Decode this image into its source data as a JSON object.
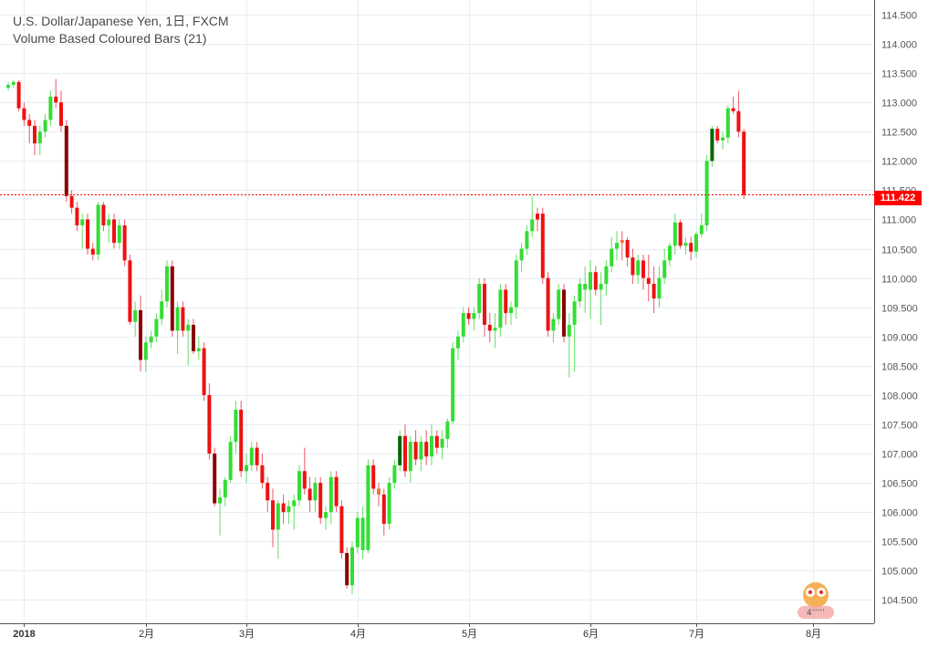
{
  "legend": {
    "symbol": "U.S. Dollar/Japanese Yen, 1日, FXCM",
    "indicator": "Volume Based Coloured Bars (21)"
  },
  "last_price": {
    "label": "111.422",
    "value": 111.422,
    "color": "#ff0000"
  },
  "watermark": {
    "icon": "owl-logo-icon",
    "text": "4ʼʼʼʼʼ"
  },
  "colors": {
    "up": "#33dd33",
    "up_high_volume": "#006600",
    "down": "#ee1111",
    "down_high_volume": "#8b0000",
    "neutral": "#ee7733",
    "wick_up": "#66dd66",
    "wick_down": "#ee5566",
    "grid": "#e6eef4",
    "axis": "#555555"
  },
  "chart_data": {
    "type": "candlestick",
    "title": "U.S. Dollar/Japanese Yen, 1日, FXCM",
    "ylim": [
      104.1,
      114.75
    ],
    "y_ticks": [
      "104.500",
      "105.000",
      "105.500",
      "106.000",
      "106.500",
      "107.000",
      "107.500",
      "108.000",
      "108.500",
      "109.000",
      "109.500",
      "110.000",
      "110.500",
      "111.000",
      "111.500",
      "112.000",
      "112.500",
      "113.000",
      "113.500",
      "114.000",
      "114.500"
    ],
    "x_ticks": [
      {
        "index": 3,
        "label": "2018",
        "bold": true
      },
      {
        "index": 26,
        "label": "2月"
      },
      {
        "index": 45,
        "label": "3月"
      },
      {
        "index": 66,
        "label": "4月"
      },
      {
        "index": 87,
        "label": "5月"
      },
      {
        "index": 110,
        "label": "6月"
      },
      {
        "index": 130,
        "label": "7月"
      },
      {
        "index": 152,
        "label": "8月"
      }
    ],
    "grid": true,
    "candles": [
      [
        113.25,
        113.35,
        113.2,
        113.3,
        "up"
      ],
      [
        113.3,
        113.38,
        113.25,
        113.35,
        "up"
      ],
      [
        113.35,
        113.38,
        112.85,
        112.9,
        "down"
      ],
      [
        112.9,
        113.0,
        112.6,
        112.7,
        "down"
      ],
      [
        112.7,
        112.8,
        112.3,
        112.6,
        "down"
      ],
      [
        112.6,
        112.7,
        112.1,
        112.3,
        "down"
      ],
      [
        112.3,
        112.6,
        112.1,
        112.5,
        "up"
      ],
      [
        112.5,
        112.8,
        112.4,
        112.7,
        "up"
      ],
      [
        112.7,
        113.2,
        112.6,
        113.1,
        "up"
      ],
      [
        113.1,
        113.4,
        112.9,
        113.0,
        "down"
      ],
      [
        113.0,
        113.2,
        112.5,
        112.6,
        "down"
      ],
      [
        112.6,
        112.7,
        111.3,
        111.4,
        "down_high"
      ],
      [
        111.4,
        111.5,
        111.1,
        111.2,
        "down"
      ],
      [
        111.2,
        111.3,
        110.8,
        110.9,
        "down"
      ],
      [
        110.9,
        111.1,
        110.5,
        111.0,
        "up"
      ],
      [
        111.0,
        111.1,
        110.4,
        110.5,
        "down"
      ],
      [
        110.5,
        110.6,
        110.3,
        110.4,
        "down"
      ],
      [
        110.4,
        111.3,
        110.3,
        111.25,
        "up"
      ],
      [
        111.25,
        111.3,
        110.8,
        110.9,
        "down"
      ],
      [
        110.9,
        111.1,
        110.6,
        111.0,
        "up"
      ],
      [
        111.0,
        111.1,
        110.5,
        110.6,
        "down"
      ],
      [
        110.6,
        111.0,
        110.5,
        110.9,
        "up"
      ],
      [
        110.9,
        111.0,
        110.2,
        110.3,
        "down"
      ],
      [
        110.3,
        110.4,
        109.2,
        109.25,
        "down"
      ],
      [
        109.25,
        109.6,
        109.0,
        109.45,
        "up"
      ],
      [
        109.45,
        109.7,
        108.4,
        108.6,
        "down_high"
      ],
      [
        108.6,
        109.0,
        108.4,
        108.9,
        "up"
      ],
      [
        108.9,
        109.1,
        108.8,
        109.0,
        "up"
      ],
      [
        109.0,
        109.4,
        108.9,
        109.3,
        "up"
      ],
      [
        109.3,
        109.8,
        109.2,
        109.6,
        "up"
      ],
      [
        109.6,
        110.3,
        109.5,
        110.2,
        "up"
      ],
      [
        110.2,
        110.3,
        109.0,
        109.1,
        "down_high"
      ],
      [
        109.1,
        109.6,
        108.7,
        109.5,
        "up"
      ],
      [
        109.5,
        109.6,
        109.0,
        109.1,
        "down"
      ],
      [
        109.1,
        109.3,
        108.5,
        109.2,
        "up"
      ],
      [
        109.2,
        109.3,
        108.7,
        108.75,
        "down_high"
      ],
      [
        108.75,
        109.0,
        108.6,
        108.8,
        "up"
      ],
      [
        108.8,
        108.9,
        107.9,
        108.0,
        "down"
      ],
      [
        108.0,
        108.2,
        106.9,
        107.0,
        "down"
      ],
      [
        107.0,
        107.1,
        106.1,
        106.15,
        "down_high"
      ],
      [
        106.15,
        106.4,
        105.6,
        106.25,
        "up"
      ],
      [
        106.25,
        106.6,
        106.1,
        106.55,
        "up"
      ],
      [
        106.55,
        107.3,
        106.5,
        107.2,
        "up"
      ],
      [
        107.2,
        107.9,
        107.0,
        107.75,
        "up"
      ],
      [
        107.75,
        107.9,
        106.6,
        106.7,
        "down"
      ],
      [
        106.7,
        107.0,
        106.5,
        106.8,
        "up"
      ],
      [
        106.8,
        107.2,
        106.7,
        107.1,
        "up"
      ],
      [
        107.1,
        107.2,
        106.7,
        106.8,
        "down"
      ],
      [
        106.8,
        107.0,
        106.4,
        106.5,
        "down"
      ],
      [
        106.5,
        106.6,
        106.0,
        106.2,
        "down"
      ],
      [
        106.2,
        106.4,
        105.4,
        105.7,
        "down"
      ],
      [
        105.7,
        106.2,
        105.2,
        106.15,
        "up"
      ],
      [
        106.15,
        106.3,
        105.8,
        106.0,
        "down"
      ],
      [
        106.0,
        106.2,
        105.8,
        106.1,
        "up"
      ],
      [
        106.1,
        106.3,
        105.7,
        106.2,
        "up"
      ],
      [
        106.2,
        106.8,
        106.1,
        106.7,
        "up"
      ],
      [
        106.7,
        107.1,
        106.3,
        106.4,
        "down"
      ],
      [
        106.4,
        106.6,
        106.0,
        106.2,
        "down"
      ],
      [
        106.2,
        106.6,
        106.0,
        106.5,
        "up"
      ],
      [
        106.5,
        106.6,
        105.8,
        105.9,
        "down"
      ],
      [
        105.9,
        106.1,
        105.7,
        106.0,
        "up"
      ],
      [
        106.0,
        106.7,
        105.8,
        106.6,
        "up"
      ],
      [
        106.6,
        106.7,
        106.0,
        106.1,
        "down"
      ],
      [
        106.1,
        106.2,
        105.2,
        105.3,
        "down"
      ],
      [
        105.3,
        105.4,
        104.7,
        104.75,
        "down_high"
      ],
      [
        104.75,
        105.5,
        104.6,
        105.4,
        "up"
      ],
      [
        105.4,
        106.0,
        105.3,
        105.9,
        "up"
      ],
      [
        105.9,
        106.1,
        105.2,
        105.35,
        "up"
      ],
      [
        105.35,
        106.9,
        105.3,
        106.8,
        "up"
      ],
      [
        106.8,
        106.9,
        106.3,
        106.4,
        "down"
      ],
      [
        106.4,
        106.5,
        106.1,
        106.3,
        "neutral"
      ],
      [
        106.3,
        106.4,
        105.6,
        105.8,
        "down"
      ],
      [
        105.8,
        106.6,
        105.7,
        106.5,
        "up"
      ],
      [
        106.5,
        106.9,
        106.4,
        106.8,
        "up"
      ],
      [
        106.8,
        107.4,
        106.7,
        107.3,
        "up_high"
      ],
      [
        107.3,
        107.5,
        106.6,
        106.7,
        "down"
      ],
      [
        106.7,
        107.3,
        106.5,
        107.2,
        "up"
      ],
      [
        107.2,
        107.4,
        106.8,
        106.9,
        "down"
      ],
      [
        106.9,
        107.3,
        106.7,
        107.2,
        "up"
      ],
      [
        107.2,
        107.4,
        106.8,
        106.95,
        "down"
      ],
      [
        106.95,
        107.5,
        106.8,
        107.3,
        "up"
      ],
      [
        107.3,
        107.4,
        107.0,
        107.1,
        "down"
      ],
      [
        107.1,
        107.4,
        106.9,
        107.25,
        "up"
      ],
      [
        107.25,
        107.6,
        107.1,
        107.55,
        "up"
      ],
      [
        107.55,
        108.9,
        107.5,
        108.8,
        "up"
      ],
      [
        108.8,
        109.1,
        108.6,
        109.0,
        "up"
      ],
      [
        109.0,
        109.5,
        108.9,
        109.4,
        "up"
      ],
      [
        109.4,
        109.5,
        109.2,
        109.3,
        "down"
      ],
      [
        109.3,
        109.5,
        109.1,
        109.4,
        "up"
      ],
      [
        109.4,
        110.0,
        109.3,
        109.9,
        "up"
      ],
      [
        109.9,
        110.0,
        109.0,
        109.2,
        "down"
      ],
      [
        109.2,
        109.4,
        108.9,
        109.1,
        "down"
      ],
      [
        109.1,
        109.4,
        108.8,
        109.15,
        "up"
      ],
      [
        109.15,
        109.9,
        109.0,
        109.8,
        "up"
      ],
      [
        109.8,
        109.9,
        109.2,
        109.4,
        "down"
      ],
      [
        109.4,
        109.6,
        109.2,
        109.5,
        "up"
      ],
      [
        109.5,
        110.4,
        109.3,
        110.3,
        "up"
      ],
      [
        110.3,
        110.6,
        110.1,
        110.5,
        "up"
      ],
      [
        110.5,
        110.9,
        110.4,
        110.8,
        "up"
      ],
      [
        110.8,
        111.4,
        110.7,
        111.0,
        "up"
      ],
      [
        111.0,
        111.2,
        110.8,
        111.1,
        "down"
      ],
      [
        111.1,
        111.2,
        109.9,
        110.0,
        "down"
      ],
      [
        110.0,
        110.1,
        109.0,
        109.1,
        "down"
      ],
      [
        109.1,
        109.4,
        108.9,
        109.3,
        "up"
      ],
      [
        109.3,
        109.9,
        109.2,
        109.8,
        "up"
      ],
      [
        109.8,
        109.9,
        108.9,
        109.0,
        "down_high"
      ],
      [
        109.0,
        109.4,
        108.3,
        109.2,
        "up"
      ],
      [
        109.2,
        109.7,
        108.4,
        109.6,
        "up"
      ],
      [
        109.6,
        110.0,
        109.5,
        109.9,
        "up"
      ],
      [
        109.9,
        110.2,
        109.4,
        109.8,
        "up"
      ],
      [
        109.8,
        110.3,
        109.3,
        110.1,
        "up"
      ],
      [
        110.1,
        110.2,
        109.7,
        109.8,
        "down"
      ],
      [
        109.8,
        110.1,
        109.2,
        109.9,
        "up"
      ],
      [
        109.9,
        110.3,
        109.7,
        110.2,
        "up"
      ],
      [
        110.2,
        110.7,
        110.1,
        110.5,
        "up"
      ],
      [
        110.5,
        110.8,
        110.3,
        110.6,
        "up"
      ],
      [
        110.6,
        110.8,
        110.3,
        110.65,
        "neutral"
      ],
      [
        110.65,
        110.7,
        110.2,
        110.35,
        "down"
      ],
      [
        110.35,
        110.5,
        109.9,
        110.05,
        "down"
      ],
      [
        110.05,
        110.4,
        109.9,
        110.3,
        "up"
      ],
      [
        110.3,
        110.4,
        109.8,
        110.0,
        "down"
      ],
      [
        110.0,
        110.4,
        109.6,
        109.9,
        "down"
      ],
      [
        109.9,
        110.2,
        109.4,
        109.65,
        "down"
      ],
      [
        109.65,
        110.2,
        109.5,
        110.0,
        "up"
      ],
      [
        110.0,
        110.5,
        109.9,
        110.3,
        "up"
      ],
      [
        110.3,
        110.6,
        110.2,
        110.55,
        "up"
      ],
      [
        110.55,
        111.1,
        110.4,
        110.95,
        "up"
      ],
      [
        110.95,
        111.0,
        110.5,
        110.55,
        "down"
      ],
      [
        110.55,
        110.7,
        110.4,
        110.6,
        "up"
      ],
      [
        110.6,
        110.7,
        110.3,
        110.45,
        "down"
      ],
      [
        110.45,
        110.8,
        110.35,
        110.75,
        "up"
      ],
      [
        110.75,
        111.1,
        110.7,
        110.9,
        "up"
      ],
      [
        110.9,
        112.1,
        110.8,
        112.0,
        "up"
      ],
      [
        112.0,
        112.6,
        111.9,
        112.55,
        "up_high"
      ],
      [
        112.55,
        112.6,
        112.3,
        112.35,
        "down"
      ],
      [
        112.35,
        112.5,
        112.2,
        112.4,
        "up"
      ],
      [
        112.4,
        112.95,
        112.3,
        112.9,
        "up"
      ],
      [
        112.9,
        113.1,
        112.8,
        112.85,
        "down"
      ],
      [
        112.85,
        113.2,
        112.4,
        112.5,
        "down"
      ],
      [
        112.5,
        112.55,
        111.35,
        111.42,
        "down"
      ]
    ]
  }
}
